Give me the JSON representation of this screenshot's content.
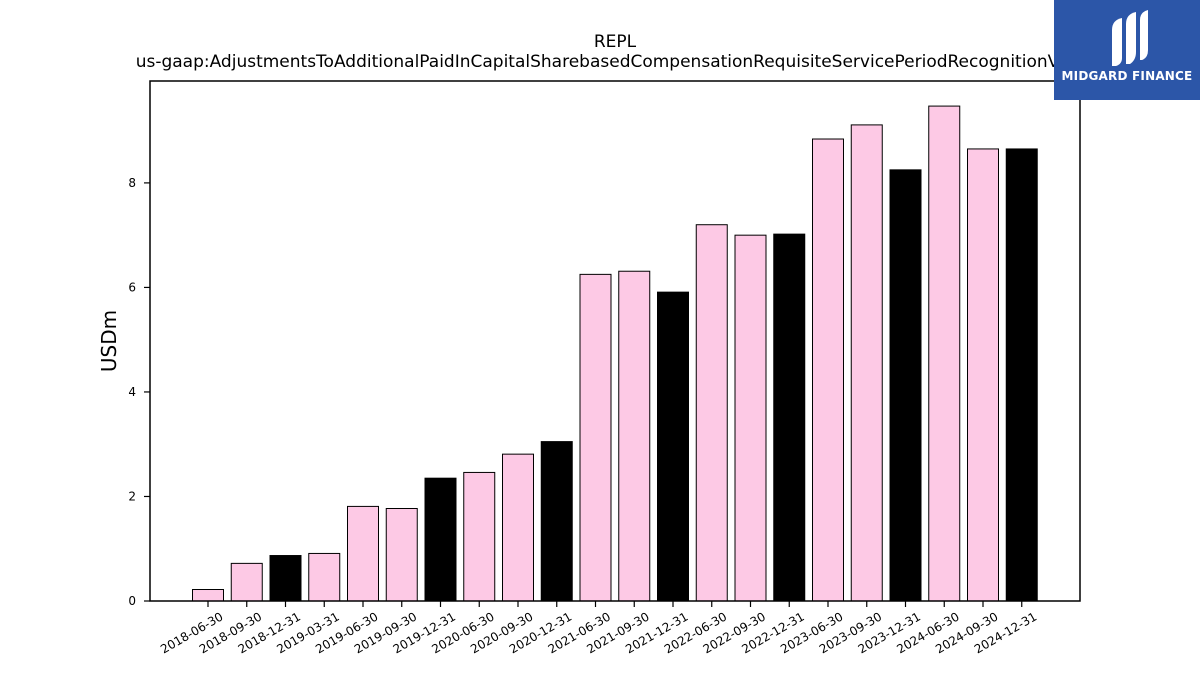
{
  "chart_data": {
    "type": "bar",
    "title": "REPL",
    "subtitle": "us-gaap:AdjustmentsToAdditionalPaidInCapitalSharebasedCompensationRequisiteServicePeriodRecognitionValue",
    "xlabel": "",
    "ylabel": "USDm",
    "ylim": [
      0,
      9.95
    ],
    "yticks": [
      0,
      2,
      4,
      6,
      8
    ],
    "grid": false,
    "categories": [
      "2018-06-30",
      "2018-09-30",
      "2018-12-31",
      "2019-03-31",
      "2019-06-30",
      "2019-09-30",
      "2019-12-31",
      "2020-06-30",
      "2020-09-30",
      "2020-12-31",
      "2021-06-30",
      "2021-09-30",
      "2021-12-31",
      "2022-06-30",
      "2022-09-30",
      "2022-12-31",
      "2023-06-30",
      "2023-09-30",
      "2023-12-31",
      "2024-06-30",
      "2024-09-30",
      "2024-12-31"
    ],
    "values": [
      0.22,
      0.72,
      0.87,
      0.91,
      1.81,
      1.77,
      2.35,
      2.46,
      2.81,
      3.05,
      6.25,
      6.31,
      5.91,
      7.2,
      7.0,
      7.02,
      8.84,
      9.11,
      8.25,
      9.47,
      8.65,
      8.65
    ],
    "colors": {
      "quarter": "#fdc9e5",
      "year_end": "#000000",
      "edge": "#000000"
    },
    "year_end_categories": [
      "2018-12-31",
      "2019-12-31",
      "2020-12-31",
      "2021-12-31",
      "2022-12-31",
      "2023-12-31",
      "2024-12-31"
    ]
  },
  "logo": {
    "text": "MIDGARD FINANCE",
    "background": "#2c56a8"
  }
}
